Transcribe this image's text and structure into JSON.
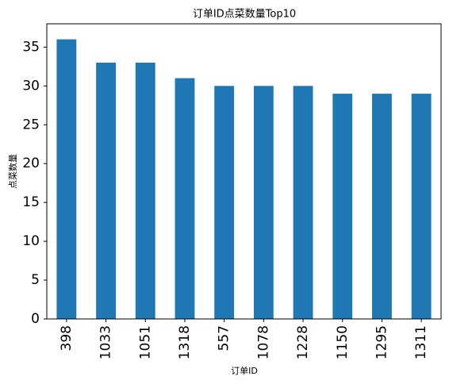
{
  "chart_data": {
    "type": "bar",
    "title": "订单ID点菜数量Top10",
    "x_label": "订单ID",
    "y_label": "点菜数量",
    "categories": [
      "398",
      "1033",
      "1051",
      "1318",
      "557",
      "1078",
      "1228",
      "1150",
      "1295",
      "1311"
    ],
    "values": [
      36,
      33,
      33,
      31,
      30,
      30,
      30,
      29,
      29,
      29
    ],
    "color": "#1f77b4",
    "ylim": [
      0,
      38
    ],
    "yticks": [
      0,
      5,
      10,
      15,
      20,
      25,
      30,
      35
    ],
    "grid": false
  }
}
